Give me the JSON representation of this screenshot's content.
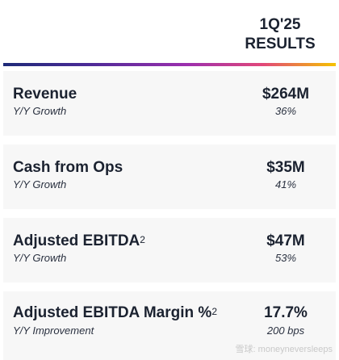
{
  "header": {
    "period_line1": "1Q'25",
    "period_line2": "RESULTS"
  },
  "rows": [
    {
      "metric": "Revenue",
      "sup": "",
      "sub": "Y/Y Growth",
      "value": "$264M",
      "change": "36%"
    },
    {
      "metric": "Cash from Ops",
      "sup": "",
      "sub": "Y/Y Growth",
      "value": "$35M",
      "change": "41%"
    },
    {
      "metric": "Adjusted EBITDA",
      "sup": "2",
      "sub": "Y/Y Growth",
      "value": "$47M",
      "change": "53%"
    },
    {
      "metric": "Adjusted EBITDA Margin %",
      "sup": "2",
      "sub": "Y/Y Improvement",
      "value": "17.7%",
      "change": "200 bps"
    }
  ],
  "watermark": "雪球: moneyneversleeps",
  "colors": {
    "text": "#1b2230",
    "row_background": "#f7f7f7",
    "rule_gradient": [
      "#1e2a78",
      "#9b2fae",
      "#e2477a",
      "#f5c300"
    ]
  }
}
